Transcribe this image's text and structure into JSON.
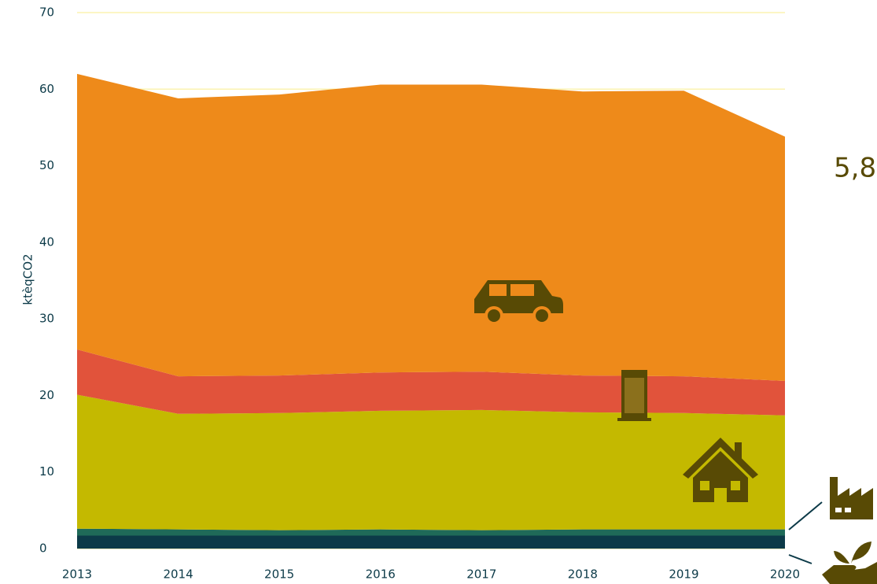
{
  "chart_data": {
    "type": "stacked_area",
    "y_label": "ktèqCO2",
    "annotation": "5,8",
    "x": [
      2013,
      2014,
      2015,
      2016,
      2017,
      2018,
      2019,
      2020
    ],
    "xlim": [
      2013,
      2020
    ],
    "xticks": [
      2013,
      2014,
      2015,
      2016,
      2017,
      2018,
      2019,
      2020
    ],
    "ylim": [
      0,
      70
    ],
    "yticks": [
      0,
      10,
      20,
      30,
      40,
      50,
      60,
      70
    ],
    "grid": true,
    "series": [
      {
        "color": "#0c3a48",
        "values": [
          1.7,
          1.7,
          1.7,
          1.7,
          1.7,
          1.7,
          1.7,
          1.7
        ]
      },
      {
        "color": "#1f6a58",
        "values": [
          0.9,
          0.8,
          0.7,
          0.8,
          0.7,
          0.8,
          0.8,
          0.8
        ]
      },
      {
        "color": "#c4b900",
        "values": [
          17.5,
          15.1,
          15.3,
          15.5,
          15.7,
          15.3,
          15.2,
          14.9
        ]
      },
      {
        "color": "#e1533b",
        "values": [
          5.9,
          4.9,
          4.9,
          5.0,
          5.0,
          4.8,
          4.8,
          4.5
        ]
      },
      {
        "color": "#ee8a1a",
        "values": [
          36.0,
          36.3,
          36.7,
          37.6,
          37.5,
          37.1,
          37.3,
          31.9
        ]
      }
    ]
  }
}
